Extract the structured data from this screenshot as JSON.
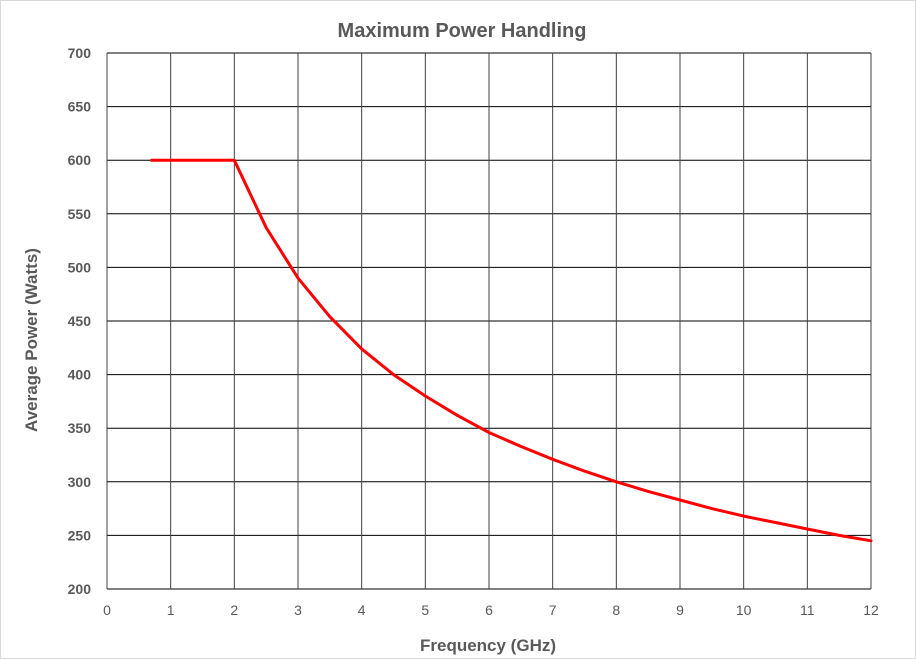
{
  "chart_data": {
    "type": "line",
    "title": "Maximum Power Handling",
    "xlabel": "Frequency (GHz)",
    "ylabel": "Average Power (Watts)",
    "xlim": [
      0,
      12
    ],
    "ylim": [
      200,
      700
    ],
    "x_ticks": [
      "0",
      "1",
      "2",
      "3",
      "4",
      "5",
      "6",
      "7",
      "8",
      "9",
      "10",
      "11",
      "12"
    ],
    "y_ticks": [
      "200",
      "250",
      "300",
      "350",
      "400",
      "450",
      "500",
      "550",
      "600",
      "650",
      "700"
    ],
    "grid": true,
    "legend": "none",
    "series": [
      {
        "color": "#ff0000",
        "x": [
          0.7,
          1.0,
          1.5,
          2.0,
          2.5,
          3.0,
          3.5,
          4.0,
          4.5,
          5.0,
          5.5,
          6.0,
          6.5,
          7.0,
          7.5,
          8.0,
          8.5,
          9.0,
          9.5,
          10.0,
          10.5,
          11.0,
          11.5,
          12.0
        ],
        "y": [
          600,
          600,
          600,
          600,
          537,
          490,
          454,
          424,
          400,
          380,
          362,
          346,
          333,
          321,
          310,
          300,
          291,
          283,
          275,
          268,
          262,
          256,
          250,
          245
        ]
      }
    ]
  }
}
